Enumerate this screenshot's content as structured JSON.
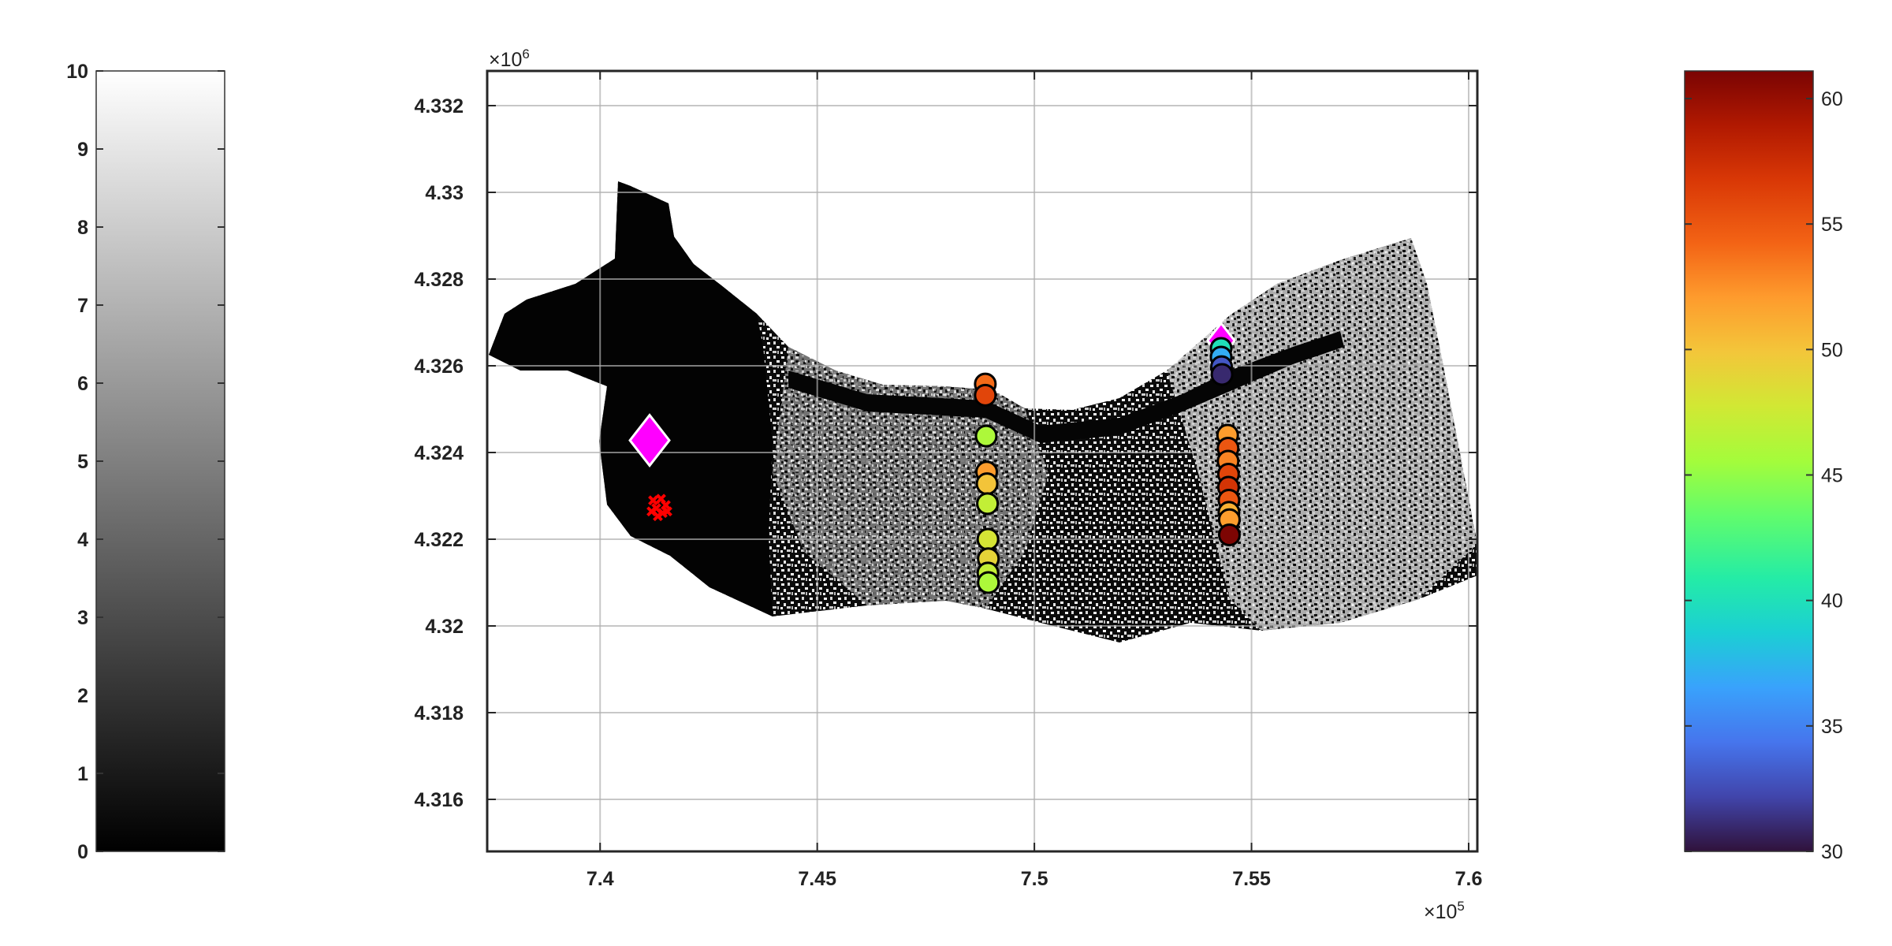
{
  "chart_data": [
    {
      "type": "heatmap",
      "role": "grayscale-colorbar",
      "colormap": "gray",
      "range": [
        0,
        10
      ],
      "ticks": [
        0,
        1,
        2,
        3,
        4,
        5,
        6,
        7,
        8,
        9,
        10
      ],
      "tick_labels": [
        "0",
        "1",
        "2",
        "3",
        "4",
        "5",
        "6",
        "7",
        "8",
        "9",
        "10"
      ]
    },
    {
      "type": "scatter",
      "role": "map",
      "background": "binary grayscale raster (black / white speckle) over a river-shaped region",
      "x_ticks": [
        7.4,
        7.45,
        7.5,
        7.55,
        7.6
      ],
      "x_tick_labels": [
        "7.4",
        "7.45",
        "7.5",
        "7.55",
        "7.6"
      ],
      "x_exponent": "×10",
      "x_exponent_power": "5",
      "xlim": [
        7.374,
        7.602
      ],
      "y_ticks": [
        4.316,
        4.318,
        4.32,
        4.322,
        4.324,
        4.326,
        4.328,
        4.33,
        4.332
      ],
      "y_tick_labels": [
        "4.316",
        "4.318",
        "4.32",
        "4.322",
        "4.324",
        "4.326",
        "4.328",
        "4.33",
        "4.332"
      ],
      "y_exponent": "×10",
      "y_exponent_power": "6",
      "ylim": [
        4.3148,
        4.3328
      ],
      "grid": true,
      "markers": [
        {
          "shape": "diamond",
          "color": "#ff00ff",
          "x": 7.4114,
          "y": 4.32428
        },
        {
          "shape": "diamond",
          "color": "#ff00ff",
          "x": 7.543,
          "y": 4.32658
        },
        {
          "shape": "cross-cluster",
          "color": "#ff0000",
          "x": 7.4133,
          "y": 4.32275
        }
      ],
      "series": [
        {
          "points": [
            {
              "x": 7.4887,
              "y": 4.32558,
              "v": 54
            },
            {
              "x": 7.4887,
              "y": 4.32532,
              "v": 56
            },
            {
              "x": 7.4889,
              "y": 4.32438,
              "v": 46
            },
            {
              "x": 7.489,
              "y": 4.32355,
              "v": 52
            },
            {
              "x": 7.4891,
              "y": 4.32328,
              "v": 50
            },
            {
              "x": 7.4892,
              "y": 4.32282,
              "v": 47
            },
            {
              "x": 7.4893,
              "y": 4.322,
              "v": 48
            },
            {
              "x": 7.4894,
              "y": 4.32155,
              "v": 49
            },
            {
              "x": 7.4893,
              "y": 4.32122,
              "v": 47
            },
            {
              "x": 7.4894,
              "y": 4.321,
              "v": 46
            },
            {
              "x": 7.543,
              "y": 4.3264,
              "v": 40
            },
            {
              "x": 7.543,
              "y": 4.3262,
              "v": 37
            },
            {
              "x": 7.5431,
              "y": 4.32598,
              "v": 33
            },
            {
              "x": 7.5432,
              "y": 4.3258,
              "v": 31
            },
            {
              "x": 7.5445,
              "y": 4.3244,
              "v": 52
            },
            {
              "x": 7.5446,
              "y": 4.3241,
              "v": 55
            },
            {
              "x": 7.5446,
              "y": 4.3238,
              "v": 53
            },
            {
              "x": 7.5447,
              "y": 4.3235,
              "v": 56
            },
            {
              "x": 7.5447,
              "y": 4.3232,
              "v": 57
            },
            {
              "x": 7.5448,
              "y": 4.3229,
              "v": 55
            },
            {
              "x": 7.5448,
              "y": 4.32262,
              "v": 51
            },
            {
              "x": 7.5449,
              "y": 4.32245,
              "v": 52
            },
            {
              "x": 7.5449,
              "y": 4.3221,
              "v": 61
            }
          ]
        }
      ]
    },
    {
      "type": "heatmap",
      "role": "turbo-colorbar",
      "colormap": "turbo",
      "range": [
        30,
        61.1
      ],
      "ticks": [
        30,
        35,
        40,
        45,
        50,
        55,
        60
      ],
      "tick_labels": [
        "30",
        "35",
        "40",
        "45",
        "50",
        "55",
        "60"
      ]
    }
  ]
}
